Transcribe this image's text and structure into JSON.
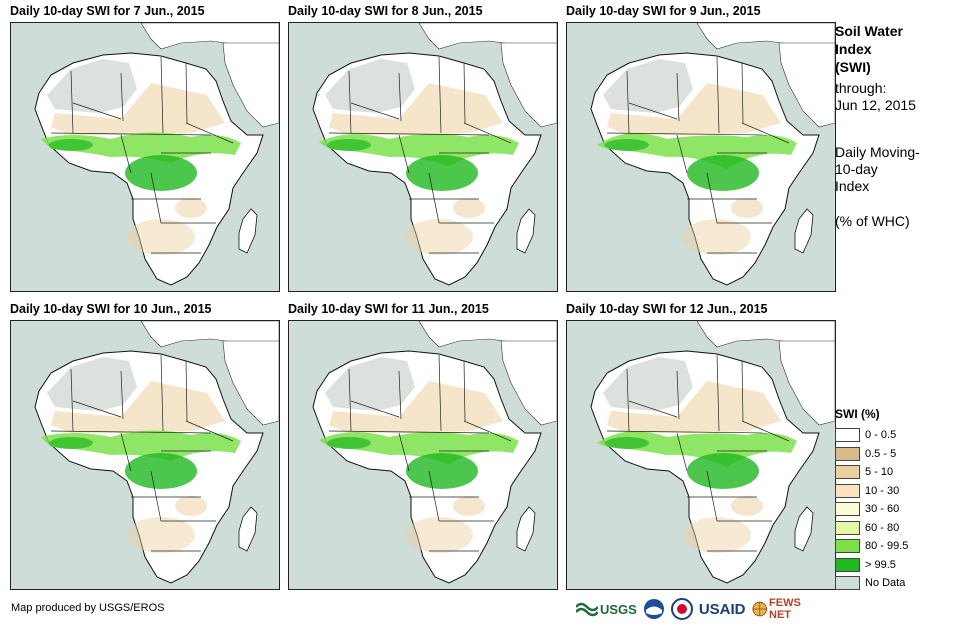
{
  "panels": [
    {
      "title": "Daily 10-day  SWI for 7 Jun., 2015"
    },
    {
      "title": "Daily 10-day  SWI for 8 Jun., 2015"
    },
    {
      "title": "Daily 10-day  SWI for 9 Jun., 2015"
    },
    {
      "title": "Daily 10-day  SWI for 10 Jun., 2015"
    },
    {
      "title": "Daily 10-day  SWI for 11 Jun., 2015"
    },
    {
      "title": "Daily 10-day  SWI for 12 Jun., 2015"
    }
  ],
  "sidebar": {
    "title_line1": "Soil Water",
    "title_line2": "Index",
    "title_line3": "(SWI)",
    "through_label": "through:",
    "through_date": "Jun 12, 2015",
    "desc_line1": "Daily Moving-",
    "desc_line2": "10-day",
    "desc_line3": "Index",
    "unit": "(% of WHC)"
  },
  "legend": {
    "title": "SWI (%)",
    "items": [
      {
        "label": "0 - 0.5",
        "color": "#ffffff"
      },
      {
        "label": "0.5 - 5",
        "color": "#d8b98a"
      },
      {
        "label": "5 - 10",
        "color": "#ecd09f"
      },
      {
        "label": "10 - 30",
        "color": "#f8e2c0"
      },
      {
        "label": "30 - 60",
        "color": "#fbfbd6"
      },
      {
        "label": "60 - 80",
        "color": "#e4f7a6"
      },
      {
        "label": "80 - 99.5",
        "color": "#7be04a"
      },
      {
        "label": "> 99.5",
        "color": "#1fb81f"
      },
      {
        "label": "No Data",
        "color": "#cfddd8"
      }
    ]
  },
  "credit": "Map produced by USGS/EROS",
  "logos": {
    "usgs": "USGS",
    "usaid": "USAID",
    "fewsnet": "FEWS NET"
  },
  "colors": {
    "ocean": "#cfddd8",
    "land": "#ffffff",
    "sahara_gray": "#d9ded9",
    "dry": "#ecd09f",
    "wet": "#7be04a",
    "saturated": "#1fb81f"
  }
}
